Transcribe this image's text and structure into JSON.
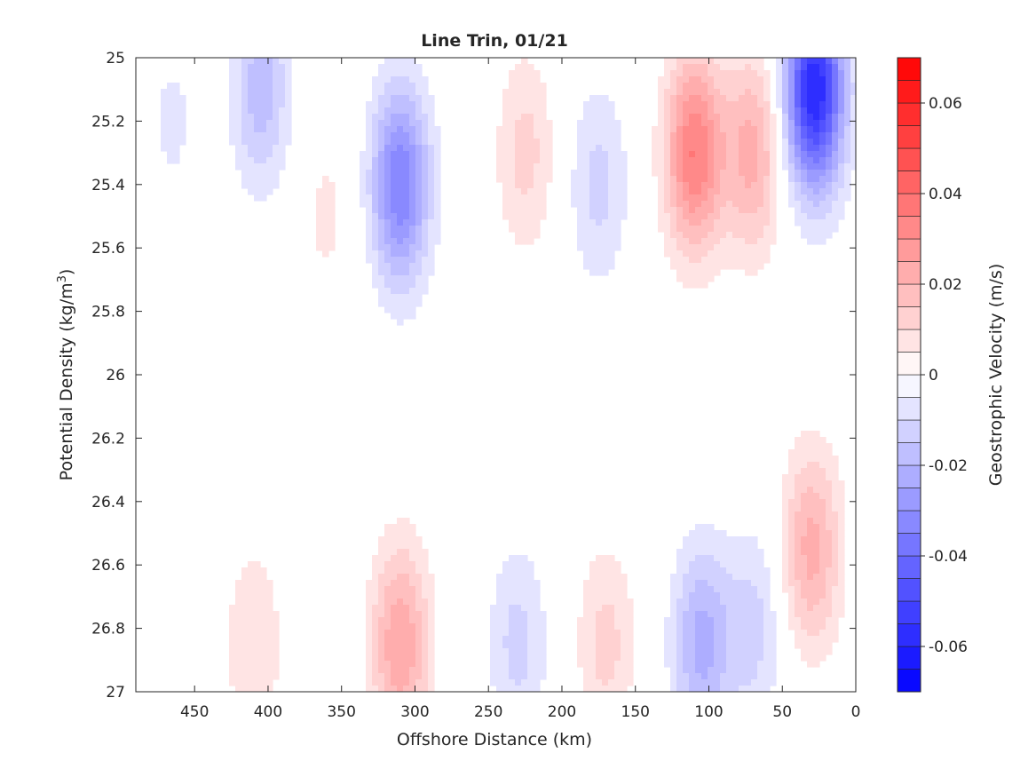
{
  "chart_data": {
    "type": "heatmap",
    "subtype": "filled-contour",
    "title": "Line Trin, 01/21",
    "xlabel": "Offshore Distance (km)",
    "ylabel_main": "Potential Density (kg/m",
    "ylabel_sup": "3",
    "ylabel_close": ")",
    "xlim": [
      0,
      490
    ],
    "x_reversed": true,
    "ylim": [
      25,
      27
    ],
    "y_reversed": true,
    "x_ticks": [
      "450",
      "400",
      "350",
      "300",
      "250",
      "200",
      "150",
      "100",
      "50",
      "0"
    ],
    "y_ticks": [
      "25",
      "25.2",
      "25.4",
      "25.6",
      "25.8",
      "26",
      "26.2",
      "26.4",
      "26.6",
      "26.8",
      "27"
    ],
    "colorbar": {
      "label": "Geostrophic Velocity (m/s)",
      "range": [
        -0.07,
        0.07
      ],
      "levels": 28,
      "ticks": [
        "0.06",
        "0.04",
        "0.02",
        "0",
        "-0.02",
        "-0.04",
        "-0.06"
      ],
      "colormap": "blue-white-red",
      "negative_color": "#0000ff",
      "positive_color": "#ff0000",
      "zero_color": "#ffffff"
    },
    "features": [
      {
        "x": 28,
        "y": 25.1,
        "value": -0.06
      },
      {
        "x": 110,
        "y": 25.3,
        "value": 0.035
      },
      {
        "x": 70,
        "y": 25.3,
        "value": 0.022
      },
      {
        "x": 310,
        "y": 25.4,
        "value": -0.035
      },
      {
        "x": 405,
        "y": 25.1,
        "value": -0.018
      },
      {
        "x": 30,
        "y": 26.55,
        "value": 0.022
      },
      {
        "x": 310,
        "y": 26.85,
        "value": 0.025
      },
      {
        "x": 105,
        "y": 26.85,
        "value": -0.022
      },
      {
        "x": 175,
        "y": 25.4,
        "value": -0.012
      },
      {
        "x": 225,
        "y": 25.3,
        "value": 0.012
      },
      {
        "x": 360,
        "y": 25.5,
        "value": 0.006
      },
      {
        "x": 465,
        "y": 25.2,
        "value": -0.006
      },
      {
        "x": 230,
        "y": 26.85,
        "value": -0.012
      },
      {
        "x": 70,
        "y": 26.8,
        "value": -0.012
      },
      {
        "x": 410,
        "y": 26.85,
        "value": 0.01
      },
      {
        "x": 170,
        "y": 26.85,
        "value": 0.012
      }
    ]
  }
}
